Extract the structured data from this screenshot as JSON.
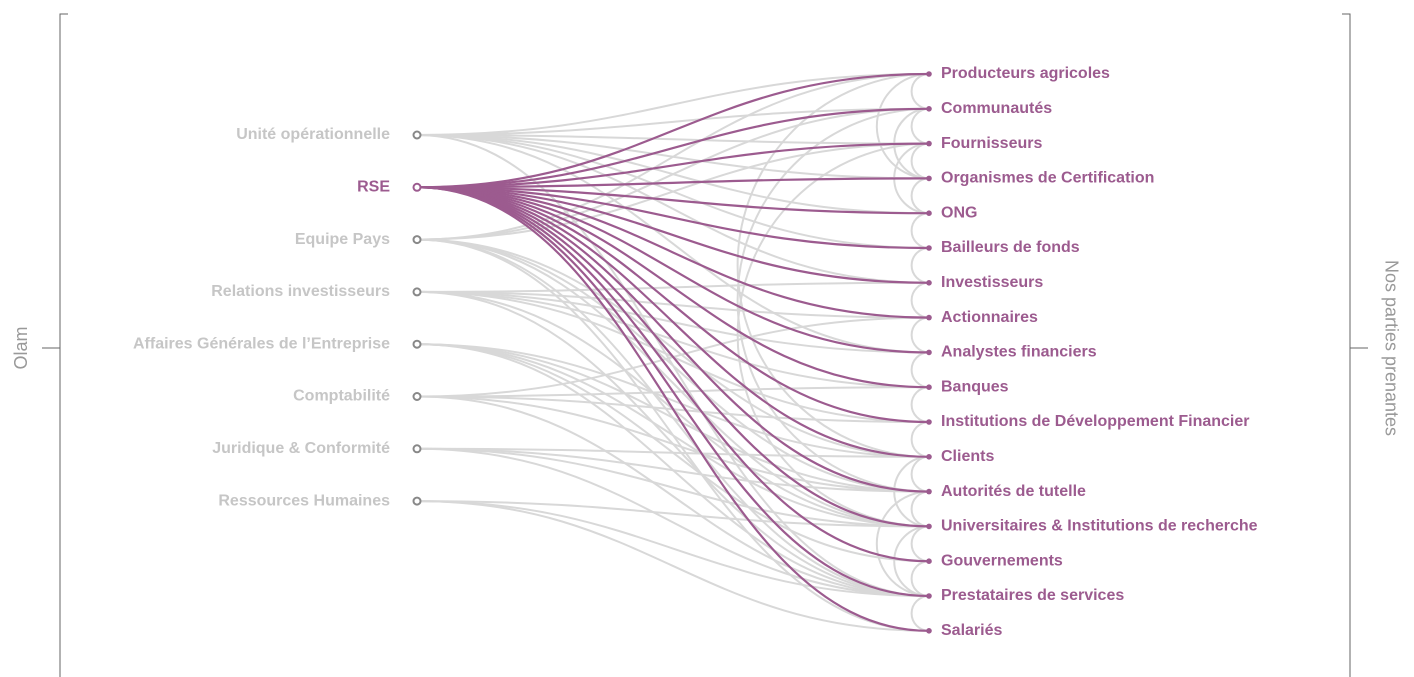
{
  "left_axis": "Olam",
  "right_axis": "Nos parties prenantes",
  "left_nodes": [
    {
      "label": "Unité opérationnelle",
      "targets": [
        0,
        1,
        2,
        3,
        4,
        5,
        6,
        8,
        15
      ]
    },
    {
      "label": "RSE",
      "highlighted": true,
      "targets": [
        0,
        1,
        2,
        3,
        4,
        5,
        6,
        7,
        8,
        9,
        10,
        11,
        12,
        13,
        14,
        15,
        16
      ]
    },
    {
      "label": "Equipe Pays",
      "targets": [
        0,
        1,
        2,
        11,
        12,
        13,
        15,
        16
      ]
    },
    {
      "label": "Relations investisseurs",
      "targets": [
        6,
        7,
        8,
        9,
        10,
        13,
        15
      ]
    },
    {
      "label": "Affaires Générales de l’Entreprise",
      "targets": [
        11,
        12,
        13,
        14,
        15
      ]
    },
    {
      "label": "Comptabilité",
      "targets": [
        7,
        9,
        10,
        12,
        15
      ]
    },
    {
      "label": "Juridique & Conformité",
      "targets": [
        11,
        12,
        13,
        15
      ]
    },
    {
      "label": "Ressources Humaines",
      "targets": [
        13,
        15,
        16
      ]
    }
  ],
  "right_nodes": [
    {
      "label": "Producteurs agricoles"
    },
    {
      "label": "Communautés"
    },
    {
      "label": "Fournisseurs"
    },
    {
      "label": "Organismes de Certification"
    },
    {
      "label": "ONG"
    },
    {
      "label": "Bailleurs de fonds"
    },
    {
      "label": "Investisseurs"
    },
    {
      "label": "Actionnaires"
    },
    {
      "label": "Analystes financiers"
    },
    {
      "label": "Banques"
    },
    {
      "label": "Institutions de Développement Financier"
    },
    {
      "label": "Clients"
    },
    {
      "label": "Autorités de tutelle"
    },
    {
      "label": "Universitaires & Institutions de recherche"
    },
    {
      "label": "Gouvernements"
    },
    {
      "label": "Prestataires de services"
    },
    {
      "label": "Salariés"
    }
  ],
  "right_links": [
    [
      0,
      1
    ],
    [
      1,
      2
    ],
    [
      2,
      3
    ],
    [
      3,
      4
    ],
    [
      4,
      5
    ],
    [
      5,
      6
    ],
    [
      6,
      7
    ],
    [
      7,
      8
    ],
    [
      8,
      9
    ],
    [
      9,
      10
    ],
    [
      10,
      11
    ],
    [
      11,
      12
    ],
    [
      12,
      13
    ],
    [
      13,
      14
    ],
    [
      14,
      15
    ],
    [
      15,
      16
    ],
    [
      0,
      3
    ],
    [
      1,
      3
    ],
    [
      2,
      4
    ],
    [
      0,
      11
    ],
    [
      1,
      12
    ],
    [
      2,
      13
    ],
    [
      11,
      13
    ],
    [
      12,
      15
    ],
    [
      13,
      15
    ]
  ]
}
